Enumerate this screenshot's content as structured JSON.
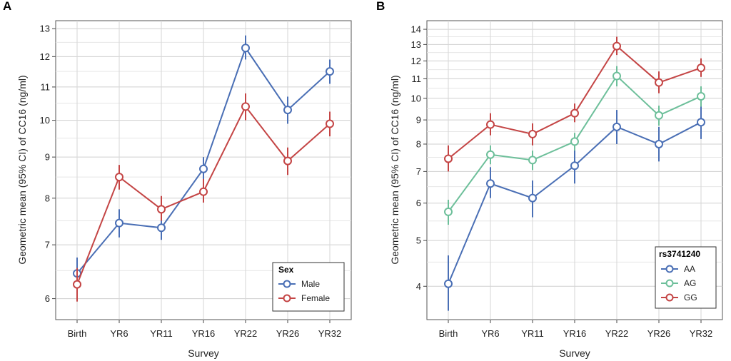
{
  "chart_data": [
    {
      "panel_label": "A",
      "type": "line",
      "xlabel": "Survey",
      "ylabel": "Geometric mean (95% CI) of CC16 (ng/ml)",
      "categories": [
        "Birth",
        "YR6",
        "YR11",
        "YR16",
        "YR22",
        "YR26",
        "YR32"
      ],
      "y_scale": "log",
      "ylim": [
        5.65,
        13.3
      ],
      "yticks": [
        6,
        7,
        8,
        9,
        10,
        11,
        12,
        13
      ],
      "grid": true,
      "legend": {
        "title": "Sex",
        "position": "bottom-right"
      },
      "series": [
        {
          "name": "Male",
          "color": "#4a6fb5",
          "values": [
            6.45,
            7.45,
            7.35,
            8.7,
            12.3,
            10.3,
            11.5
          ],
          "ci_low": [
            6.15,
            7.15,
            7.1,
            8.4,
            11.9,
            9.9,
            11.1
          ],
          "ci_high": [
            6.75,
            7.75,
            7.6,
            9.0,
            12.75,
            10.7,
            11.9
          ]
        },
        {
          "name": "Female",
          "color": "#c44545",
          "values": [
            6.25,
            8.5,
            7.75,
            8.15,
            10.4,
            8.9,
            9.9
          ],
          "ci_low": [
            5.95,
            8.2,
            7.5,
            7.9,
            10.0,
            8.55,
            9.55
          ],
          "ci_high": [
            6.55,
            8.8,
            8.05,
            8.45,
            10.8,
            9.25,
            10.25
          ]
        }
      ]
    },
    {
      "panel_label": "B",
      "type": "line",
      "xlabel": "Survey",
      "ylabel": "Geometric mean (95% CI) of CC16 (ng/ml)",
      "categories": [
        "Birth",
        "YR6",
        "YR11",
        "YR16",
        "YR22",
        "YR26",
        "YR32"
      ],
      "y_scale": "log",
      "ylim": [
        3.4,
        14.6
      ],
      "yticks": [
        4,
        5,
        6,
        7,
        8,
        9,
        10,
        11,
        12,
        13,
        14
      ],
      "grid": true,
      "legend": {
        "title": "rs3741240",
        "position": "bottom-right"
      },
      "series": [
        {
          "name": "AA",
          "color": "#4a6fb5",
          "values": [
            4.05,
            6.6,
            6.15,
            7.2,
            8.7,
            8.0,
            8.9
          ],
          "ci_low": [
            3.55,
            6.15,
            5.6,
            6.6,
            8.0,
            7.35,
            8.2
          ],
          "ci_high": [
            4.65,
            7.15,
            6.7,
            7.8,
            9.45,
            8.7,
            9.7
          ]
        },
        {
          "name": "AG",
          "color": "#6dbf9a",
          "values": [
            5.75,
            7.6,
            7.4,
            8.1,
            11.15,
            9.2,
            10.1
          ],
          "ci_low": [
            5.4,
            7.25,
            7.05,
            7.75,
            10.6,
            8.75,
            9.6
          ],
          "ci_high": [
            6.1,
            7.95,
            7.75,
            8.45,
            11.7,
            9.65,
            10.6
          ]
        },
        {
          "name": "GG",
          "color": "#c44545",
          "values": [
            7.45,
            8.8,
            8.4,
            9.3,
            12.9,
            10.8,
            11.6
          ],
          "ci_low": [
            7.0,
            8.35,
            7.95,
            8.9,
            12.35,
            10.25,
            11.1
          ],
          "ci_high": [
            7.95,
            9.3,
            8.85,
            9.75,
            13.5,
            11.4,
            12.15
          ]
        }
      ]
    }
  ]
}
